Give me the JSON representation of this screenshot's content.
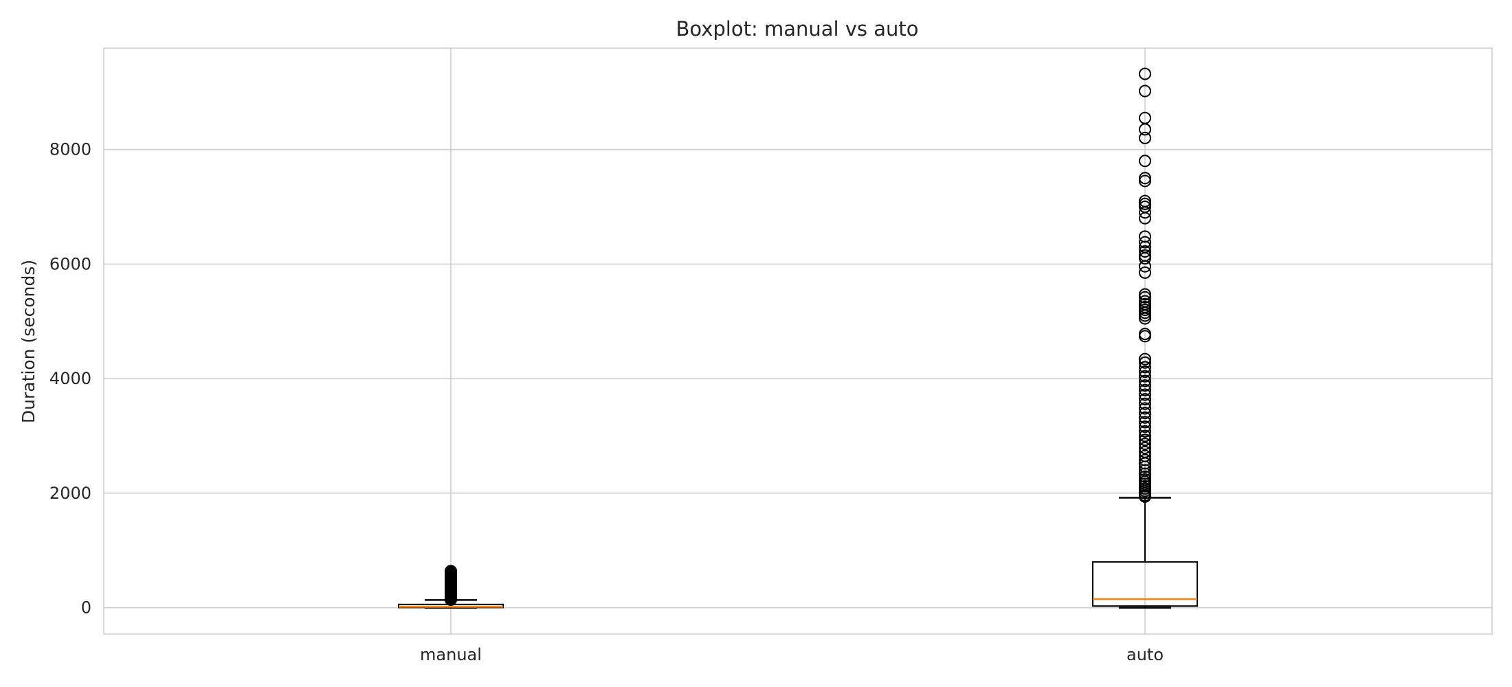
{
  "chart_data": {
    "type": "boxplot",
    "title": "Boxplot: manual vs auto",
    "xlabel": "",
    "ylabel": "Duration (seconds)",
    "ylim": [
      -460,
      9770
    ],
    "yticks": [
      0,
      2000,
      4000,
      6000,
      8000
    ],
    "grid": true,
    "legend": "none",
    "colors": {
      "box_edge": "#000000",
      "median": "#ff7f0e",
      "grid": "#cccccc",
      "frame": "#cccccc"
    },
    "categories": [
      "manual",
      "auto"
    ],
    "boxes": [
      {
        "name": "manual",
        "whisker_low": 0,
        "q1": 3,
        "median": 15,
        "q3": 58,
        "whisker_high": 135,
        "fliers": [
          140,
          150,
          160,
          170,
          180,
          190,
          200,
          210,
          220,
          235,
          250,
          265,
          280,
          295,
          310,
          325,
          340,
          355,
          370,
          385,
          400,
          415,
          430,
          445,
          460,
          475,
          490,
          505,
          520,
          535,
          550,
          565,
          580,
          595,
          610,
          625,
          640
        ]
      },
      {
        "name": "auto",
        "whisker_low": 0,
        "q1": 30,
        "median": 150,
        "q3": 800,
        "whisker_high": 1920,
        "fliers": [
          1940,
          1960,
          2000,
          2040,
          2080,
          2120,
          2160,
          2200,
          2240,
          2290,
          2340,
          2400,
          2460,
          2520,
          2580,
          2650,
          2720,
          2790,
          2860,
          2930,
          3000,
          3080,
          3160,
          3240,
          3320,
          3400,
          3480,
          3560,
          3640,
          3720,
          3800,
          3880,
          3960,
          4040,
          4120,
          4200,
          4280,
          4340,
          4740,
          4780,
          5050,
          5100,
          5150,
          5200,
          5250,
          5300,
          5350,
          5420,
          5470,
          5850,
          5960,
          6100,
          6150,
          6220,
          6300,
          6380,
          6480,
          6800,
          6900,
          7000,
          7050,
          7100,
          7450,
          7500,
          7800,
          8200,
          8350,
          8550,
          9020,
          9320
        ]
      }
    ]
  }
}
